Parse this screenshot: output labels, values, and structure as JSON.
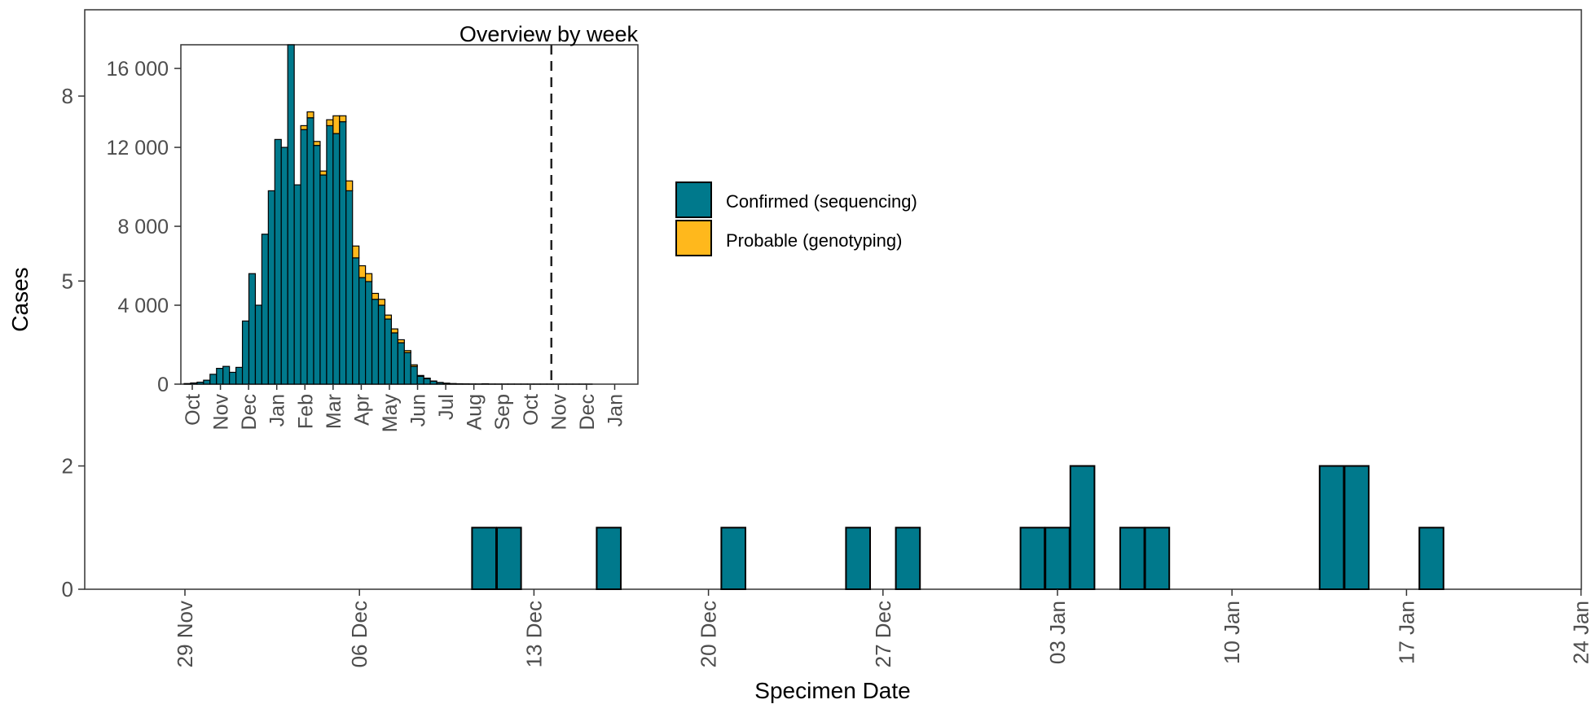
{
  "chart_data": [
    {
      "type": "bar",
      "role": "main",
      "title": "",
      "xlabel": "Specimen Date",
      "ylabel": "Cases",
      "x_ticks": [
        "29 Nov",
        "06 Dec",
        "13 Dec",
        "20 Dec",
        "27 Dec",
        "03 Jan",
        "10 Jan",
        "17 Jan",
        "24 Jan"
      ],
      "y_ticks": [
        "0",
        "2",
        "5",
        "8"
      ],
      "y_tick_values": [
        0,
        2,
        5,
        8
      ],
      "ylim": [
        0,
        9.4
      ],
      "grid": false,
      "legend_position": "top-center",
      "series": [
        {
          "name": "Confirmed (sequencing)",
          "color": "#00798c",
          "points": [
            {
              "date": "11 Dec",
              "value": 1
            },
            {
              "date": "12 Dec",
              "value": 1
            },
            {
              "date": "16 Dec",
              "value": 1
            },
            {
              "date": "21 Dec",
              "value": 1
            },
            {
              "date": "26 Dec",
              "value": 1
            },
            {
              "date": "28 Dec",
              "value": 1
            },
            {
              "date": "02 Jan",
              "value": 1
            },
            {
              "date": "03 Jan",
              "value": 1
            },
            {
              "date": "04 Jan",
              "value": 2
            },
            {
              "date": "06 Jan",
              "value": 1
            },
            {
              "date": "07 Jan",
              "value": 1
            },
            {
              "date": "14 Jan",
              "value": 2
            },
            {
              "date": "15 Jan",
              "value": 2
            },
            {
              "date": "18 Jan",
              "value": 1
            }
          ]
        },
        {
          "name": "Probable (genotyping)",
          "color": "#ffb81c",
          "points": []
        }
      ]
    },
    {
      "type": "bar",
      "role": "inset",
      "title": "Overview by week",
      "stacked": true,
      "y_ticks": [
        "0",
        "4 000",
        "8 000",
        "12 000",
        "16 000"
      ],
      "y_tick_values": [
        0,
        4000,
        8000,
        12000,
        16000
      ],
      "ylim": [
        0,
        17200
      ],
      "month_labels": [
        "Oct",
        "Nov",
        "Dec",
        "Jan",
        "Feb",
        "Mar",
        "Apr",
        "May",
        "Jun",
        "Jul",
        "Aug",
        "Sep",
        "Oct",
        "Nov",
        "Dec",
        "Jan"
      ],
      "week_index_of_first_month": 0,
      "weeks_per_month": 4.348,
      "reference_line": {
        "week": 56.7,
        "style": "dashed"
      },
      "series": [
        {
          "name": "Confirmed (sequencing)",
          "color": "#00798c",
          "values": [
            30,
            60,
            100,
            200,
            500,
            800,
            900,
            600,
            850,
            3200,
            5600,
            4000,
            7600,
            9800,
            12400,
            12000,
            17200,
            10100,
            12900,
            13500,
            12100,
            10600,
            13100,
            12700,
            13300,
            9800,
            6400,
            5400,
            5200,
            4300,
            4000,
            3300,
            2600,
            2100,
            1600,
            900,
            400,
            280,
            150,
            80,
            50,
            30,
            20,
            15,
            10,
            8,
            20,
            6,
            5,
            4,
            4,
            3,
            3,
            2,
            2,
            2,
            2,
            1,
            1,
            1,
            1,
            1,
            1
          ]
        },
        {
          "name": "Probable (genotyping)",
          "color": "#ffb81c",
          "values": [
            0,
            0,
            0,
            0,
            0,
            0,
            0,
            0,
            0,
            0,
            0,
            0,
            0,
            0,
            0,
            0,
            0,
            0,
            200,
            300,
            200,
            200,
            300,
            900,
            300,
            500,
            600,
            600,
            400,
            300,
            300,
            200,
            200,
            150,
            100,
            80,
            40,
            25,
            10,
            5,
            0,
            0,
            0,
            0,
            0,
            0,
            0,
            0,
            0,
            0,
            0,
            0,
            0,
            0,
            0,
            0,
            0,
            0,
            0,
            0,
            0,
            0,
            0
          ]
        }
      ]
    }
  ]
}
